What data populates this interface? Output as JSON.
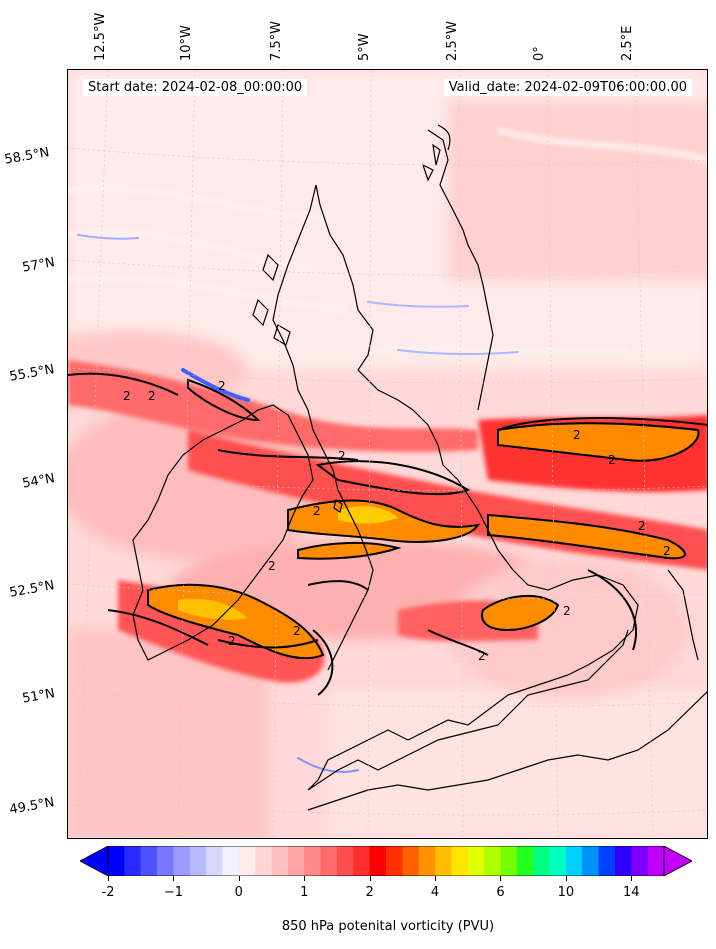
{
  "header": {
    "start_date": "Start date: 2024-02-08_00:00:00",
    "valid_date": "Valid_date: 2024-02-09T06:00:00.00"
  },
  "lon_labels": [
    "12.5°W",
    "10°W",
    "7.5°W",
    "5°W",
    "2.5°W",
    "0°",
    "2.5°E"
  ],
  "lat_labels": [
    "58.5°N",
    "57°N",
    "55.5°N",
    "54°N",
    "52.5°N",
    "51°N",
    "49.5°N"
  ],
  "colorbar": {
    "label": "850 hPa potenital vorticity (PVU)",
    "ticks": [
      "-2",
      "−1",
      "0",
      "1",
      "2",
      "4",
      "6",
      "10",
      "14"
    ],
    "colors": [
      "#0000ff",
      "#2a2aff",
      "#5050ff",
      "#7878ff",
      "#9a9aff",
      "#b8b8ff",
      "#d6d6ff",
      "#f1f1ff",
      "#ffeaea",
      "#ffd6d6",
      "#ffc0c0",
      "#ffa5a5",
      "#ff8888",
      "#ff6b6b",
      "#ff4e4e",
      "#ff2e2e",
      "#ff0000",
      "#ff3000",
      "#ff6000",
      "#ff9000",
      "#ffbd00",
      "#ffe600",
      "#e0ff00",
      "#b0ff00",
      "#70ff00",
      "#20ff20",
      "#00ff80",
      "#00ffc0",
      "#00d0ff",
      "#0090ff",
      "#0040ff",
      "#3000ff",
      "#8000ff",
      "#c000ff"
    ]
  },
  "contour_label": "2",
  "colors": {
    "background_field": "#ffdada",
    "pale_field": "#ffeeee",
    "band_red": "#ff3a3a",
    "band_orange": "#ff8c00",
    "band_yellow": "#ffcc00",
    "blue_streak": "#5060ff",
    "coastline": "#000000"
  }
}
